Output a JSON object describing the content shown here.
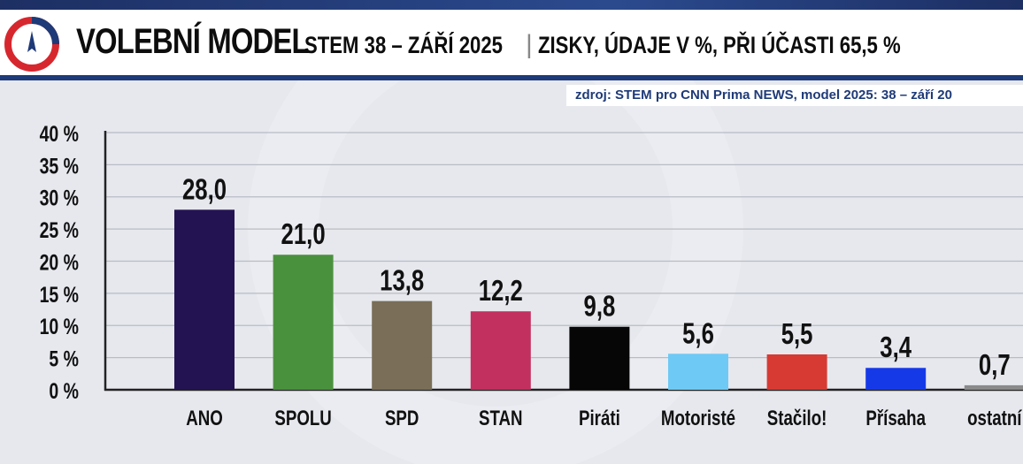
{
  "header": {
    "title": "VOLEBNÍ MODEL",
    "subtitle": "STEM 38 – ZÁŘÍ 2025",
    "separator": "|",
    "description": "ZISKY, ÚDAJE V %, PŘI ÚČASTI 65,5 %",
    "source": "zdroj: STEM pro CNN Prima NEWS, model 2025: 38 – září 20",
    "logo_icon": "compass-logo-icon",
    "colors": {
      "strip": "#1d2f63",
      "border": "#1e3a78",
      "logo_red": "#d7272e",
      "logo_blue": "#1e3a78"
    }
  },
  "chart_data": {
    "type": "bar",
    "title": "VOLEBNÍ MODEL",
    "categories": [
      "ANO",
      "SPOLU",
      "SPD",
      "STAN",
      "Piráti",
      "Motoristé",
      "Stačilo!",
      "Přísaha",
      "ostatní"
    ],
    "values": [
      28.0,
      21.0,
      13.8,
      12.2,
      9.8,
      5.6,
      5.5,
      3.4,
      0.7
    ],
    "value_labels": [
      "28,0",
      "21,0",
      "13,8",
      "12,2",
      "9,8",
      "5,6",
      "5,5",
      "3,4",
      "0,7"
    ],
    "colors": [
      "#241352",
      "#4a913d",
      "#7a6e58",
      "#c2305f",
      "#060606",
      "#6ec9f5",
      "#d63a33",
      "#1639e8",
      "#8a8a8a"
    ],
    "ylim": [
      0,
      40
    ],
    "yticks": [
      0,
      5,
      10,
      15,
      20,
      25,
      30,
      35,
      40
    ],
    "ytick_labels": [
      "0 %",
      "5 %",
      "10 %",
      "15 %",
      "20 %",
      "25 %",
      "30 %",
      "35 %",
      "40 %"
    ],
    "grid": true,
    "xlabel": "",
    "ylabel": ""
  }
}
